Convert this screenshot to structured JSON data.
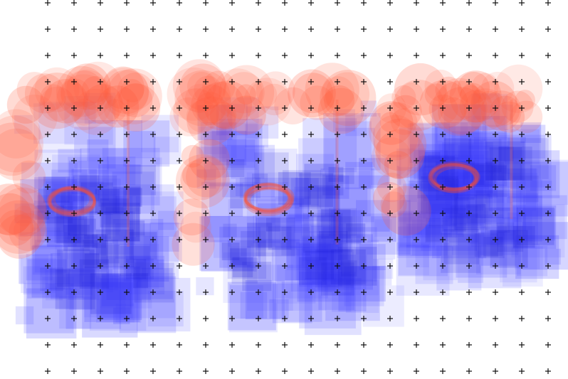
{
  "colors": {
    "background": "#ffffff",
    "grid_marker": "#111111",
    "square_blob": "#3b3bff",
    "circle_blob": "#ff5a3c"
  },
  "grid": {
    "marker_icon": "plus-icon",
    "columns": 20,
    "rows": 15
  },
  "figures": [
    {
      "name": "figure-left"
    },
    {
      "name": "figure-center"
    },
    {
      "name": "figure-right"
    }
  ]
}
